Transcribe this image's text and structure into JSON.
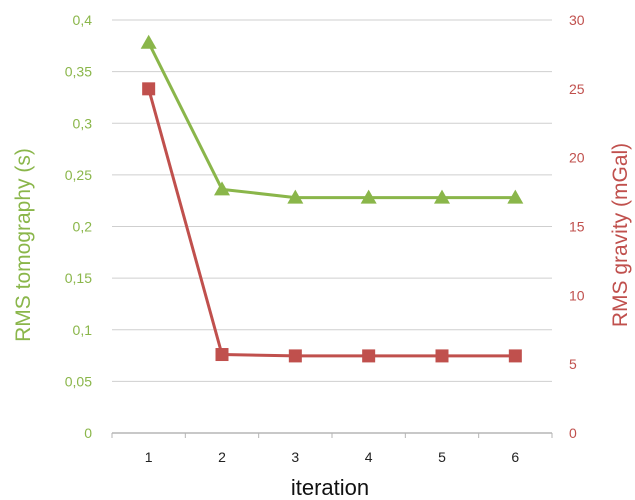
{
  "chart_data": {
    "type": "line",
    "categories": [
      "1",
      "2",
      "3",
      "4",
      "5",
      "6"
    ],
    "xlabel": "iteration",
    "y_left": {
      "label": "RMS tomography (s)",
      "range": [
        0,
        0.4
      ],
      "ticks": [
        "0",
        "0,05",
        "0,1",
        "0,15",
        "0,2",
        "0,25",
        "0,3",
        "0,35",
        "0,4"
      ],
      "color": "#8ab64a"
    },
    "y_right": {
      "label": "RMS gravity (mGal)",
      "range": [
        0,
        30
      ],
      "ticks": [
        "0",
        "5",
        "10",
        "15",
        "20",
        "25",
        "30"
      ],
      "color": "#c0504d"
    },
    "series": [
      {
        "axis": "left",
        "marker": "triangle",
        "color": "#8ab64a",
        "values": [
          0.378,
          0.236,
          0.228,
          0.228,
          0.228,
          0.228
        ]
      },
      {
        "axis": "right",
        "marker": "square",
        "color": "#c0504d",
        "values": [
          25.0,
          5.7,
          5.6,
          5.6,
          5.6,
          5.6
        ]
      }
    ],
    "grid": true
  }
}
